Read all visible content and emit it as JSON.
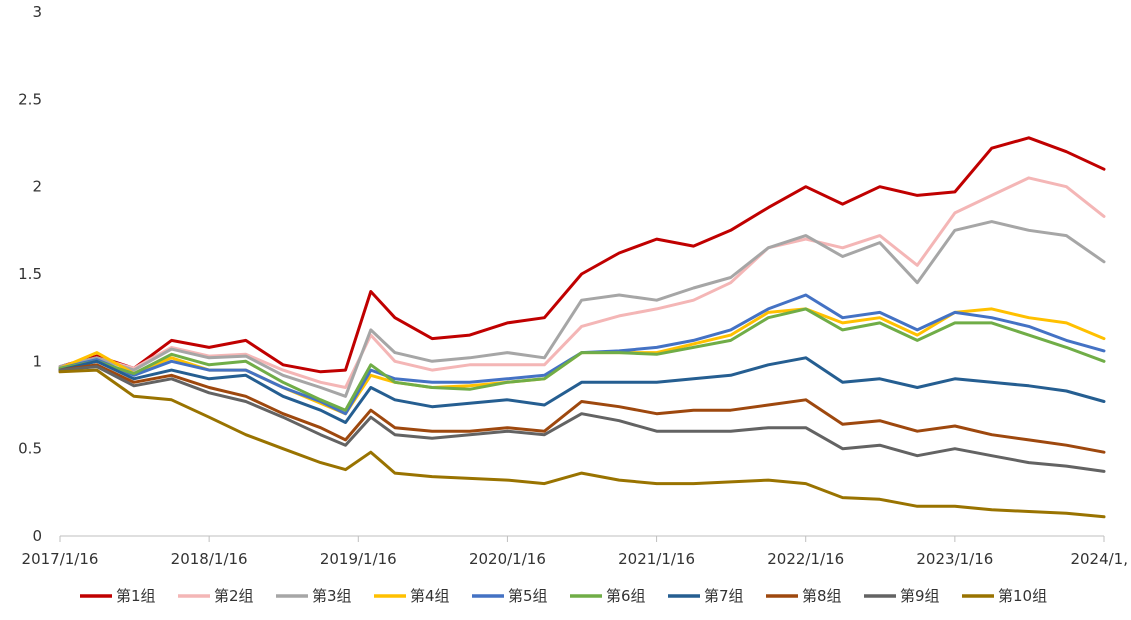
{
  "chart_data": {
    "type": "line",
    "title": "",
    "xlabel": "",
    "ylabel": "",
    "ylim": [
      0,
      3
    ],
    "yticks": [
      0,
      0.5,
      1,
      1.5,
      2,
      2.5,
      3
    ],
    "ytick_labels": [
      "0",
      "0.5",
      "1",
      "1.5",
      "2",
      "2.5",
      "3"
    ],
    "xlim": [
      "2017/1/16",
      "2024/1/16"
    ],
    "xtick_labels": [
      "2017/1/16",
      "2018/1/16",
      "2019/1/16",
      "2020/1/16",
      "2021/1/16",
      "2022/1/16",
      "2023/1/16",
      "2024/1,"
    ],
    "grid": false,
    "legend_position": "bottom",
    "x": [
      "2017/1/16",
      "2017/4/16",
      "2017/7/16",
      "2017/10/16",
      "2018/1/16",
      "2018/4/16",
      "2018/7/16",
      "2018/10/16",
      "2018/12/16",
      "2019/2/16",
      "2019/4/16",
      "2019/7/16",
      "2019/10/16",
      "2020/1/16",
      "2020/4/16",
      "2020/7/16",
      "2020/10/16",
      "2021/1/16",
      "2021/4/16",
      "2021/7/16",
      "2021/10/16",
      "2022/1/16",
      "2022/4/16",
      "2022/7/16",
      "2022/10/16",
      "2023/1/16",
      "2023/4/16",
      "2023/7/16",
      "2023/10/16",
      "2024/1/16"
    ],
    "series": [
      {
        "name": "第1组",
        "color": "#c00000",
        "values": [
          0.97,
          1.03,
          0.96,
          1.12,
          1.08,
          1.12,
          0.98,
          0.94,
          0.95,
          1.4,
          1.25,
          1.13,
          1.15,
          1.22,
          1.25,
          1.5,
          1.62,
          1.7,
          1.66,
          1.75,
          1.88,
          2.0,
          1.9,
          2.0,
          1.95,
          1.97,
          2.22,
          2.28,
          2.2,
          2.1
        ]
      },
      {
        "name": "第2组",
        "color": "#f4b6b6",
        "values": [
          0.97,
          1.02,
          0.96,
          1.08,
          1.03,
          1.04,
          0.95,
          0.88,
          0.85,
          1.15,
          1.0,
          0.95,
          0.98,
          0.98,
          0.98,
          1.2,
          1.26,
          1.3,
          1.35,
          1.45,
          1.65,
          1.7,
          1.65,
          1.72,
          1.55,
          1.85,
          1.95,
          2.05,
          2.0,
          1.83
        ]
      },
      {
        "name": "第3组",
        "color": "#a6a6a6",
        "values": [
          0.97,
          1.02,
          0.95,
          1.07,
          1.02,
          1.03,
          0.92,
          0.85,
          0.8,
          1.18,
          1.05,
          1.0,
          1.02,
          1.05,
          1.02,
          1.35,
          1.38,
          1.35,
          1.42,
          1.48,
          1.65,
          1.72,
          1.6,
          1.68,
          1.45,
          1.75,
          1.8,
          1.75,
          1.72,
          1.57
        ]
      },
      {
        "name": "第4组",
        "color": "#ffc000",
        "values": [
          0.96,
          1.05,
          0.93,
          1.02,
          0.95,
          0.95,
          0.85,
          0.76,
          0.7,
          0.92,
          0.88,
          0.85,
          0.86,
          0.88,
          0.9,
          1.05,
          1.05,
          1.05,
          1.1,
          1.15,
          1.28,
          1.3,
          1.22,
          1.25,
          1.15,
          1.28,
          1.3,
          1.25,
          1.22,
          1.13
        ]
      },
      {
        "name": "第5组",
        "color": "#4472c4",
        "values": [
          0.96,
          1.01,
          0.92,
          1.0,
          0.95,
          0.95,
          0.85,
          0.77,
          0.7,
          0.95,
          0.9,
          0.88,
          0.88,
          0.9,
          0.92,
          1.05,
          1.06,
          1.08,
          1.12,
          1.18,
          1.3,
          1.38,
          1.25,
          1.28,
          1.18,
          1.28,
          1.25,
          1.2,
          1.12,
          1.06
        ]
      },
      {
        "name": "第6组",
        "color": "#70ad47",
        "values": [
          0.96,
          1.0,
          0.93,
          1.04,
          0.98,
          1.0,
          0.88,
          0.78,
          0.72,
          0.98,
          0.88,
          0.85,
          0.84,
          0.88,
          0.9,
          1.05,
          1.05,
          1.04,
          1.08,
          1.12,
          1.25,
          1.3,
          1.18,
          1.22,
          1.12,
          1.22,
          1.22,
          1.15,
          1.08,
          1.0
        ]
      },
      {
        "name": "第7组",
        "color": "#255e91",
        "values": [
          0.95,
          1.0,
          0.9,
          0.95,
          0.9,
          0.92,
          0.8,
          0.72,
          0.65,
          0.85,
          0.78,
          0.74,
          0.76,
          0.78,
          0.75,
          0.88,
          0.88,
          0.88,
          0.9,
          0.92,
          0.98,
          1.02,
          0.88,
          0.9,
          0.85,
          0.9,
          0.88,
          0.86,
          0.83,
          0.77
        ]
      },
      {
        "name": "第8组",
        "color": "#9e480e",
        "values": [
          0.95,
          0.98,
          0.88,
          0.92,
          0.85,
          0.8,
          0.7,
          0.62,
          0.55,
          0.72,
          0.62,
          0.6,
          0.6,
          0.62,
          0.6,
          0.77,
          0.74,
          0.7,
          0.72,
          0.72,
          0.75,
          0.78,
          0.64,
          0.66,
          0.6,
          0.63,
          0.58,
          0.55,
          0.52,
          0.48
        ]
      },
      {
        "name": "第9组",
        "color": "#636363",
        "values": [
          0.95,
          0.97,
          0.86,
          0.9,
          0.82,
          0.77,
          0.68,
          0.58,
          0.52,
          0.68,
          0.58,
          0.56,
          0.58,
          0.6,
          0.58,
          0.7,
          0.66,
          0.6,
          0.6,
          0.6,
          0.62,
          0.62,
          0.5,
          0.52,
          0.46,
          0.5,
          0.46,
          0.42,
          0.4,
          0.37
        ]
      },
      {
        "name": "第10组",
        "color": "#997300",
        "values": [
          0.94,
          0.95,
          0.8,
          0.78,
          0.68,
          0.58,
          0.5,
          0.42,
          0.38,
          0.48,
          0.36,
          0.34,
          0.33,
          0.32,
          0.3,
          0.36,
          0.32,
          0.3,
          0.3,
          0.31,
          0.32,
          0.3,
          0.22,
          0.21,
          0.17,
          0.17,
          0.15,
          0.14,
          0.13,
          0.11
        ]
      }
    ]
  }
}
